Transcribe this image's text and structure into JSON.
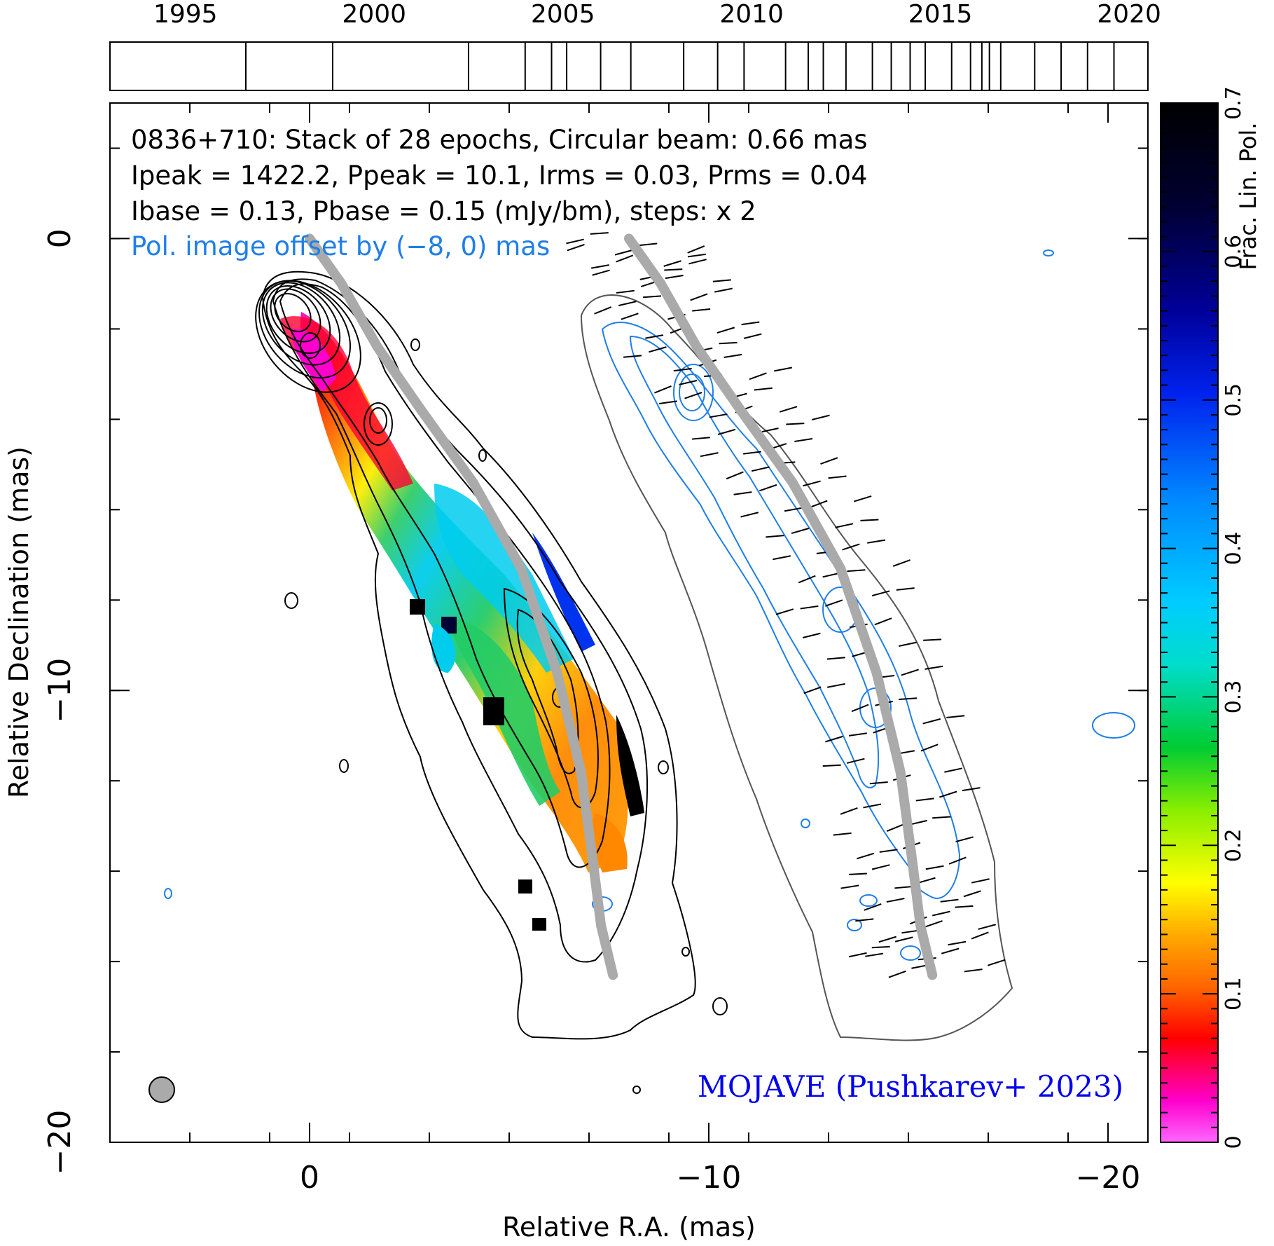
{
  "chart_data": {
    "type": "heatmap",
    "source": "0836+710",
    "header": {
      "line1": "0836+710: Stack of 28 epochs, Circular beam: 0.66 mas",
      "line2": "Ipeak = 1422.2, Ppeak = 10.1, Irms = 0.03, Prms = 0.04",
      "line3": "Ibase = 0.13, Pbase = 0.15 (mJy/bm), steps: x 2",
      "offset_note": "Pol. image offset by (−8, 0) mas"
    },
    "credit": "MOJAVE (Pushkarev+ 2023)",
    "xlabel": "Relative R.A. (mas)",
    "ylabel": "Relative Declination (mas)",
    "colorbar_label": "Frac. Lin. Pol.",
    "xlim": [
      5,
      -21
    ],
    "ylim": [
      -20,
      3
    ],
    "x_ticks": [
      0,
      -10,
      -20
    ],
    "x_tick_labels": [
      "0",
      "−10",
      "−20"
    ],
    "y_ticks": [
      0,
      -10,
      -20
    ],
    "y_tick_labels": [
      "0",
      "−10",
      "−20"
    ],
    "colorbar_range": [
      0,
      0.7
    ],
    "colorbar_ticks": [
      0,
      0.1,
      0.2,
      0.3,
      0.4,
      0.5,
      0.6,
      0.7
    ],
    "colorbar_tick_labels": [
      "0",
      "0.1",
      "0.2",
      "0.3",
      "0.4",
      "0.5",
      "0.6",
      "0.7"
    ],
    "epoch_years": [
      1995,
      2000,
      2005,
      2010,
      2015,
      2020
    ],
    "epoch_year_labels": [
      "1995",
      "2000",
      "2005",
      "2010",
      "2015",
      "2020"
    ],
    "epoch_range": [
      1993,
      2020.5
    ],
    "epochs": [
      1996.6,
      1998.9,
      2002.5,
      2004.0,
      2004.7,
      2005.1,
      2006.0,
      2006.8,
      2008.2,
      2009.1,
      2009.8,
      2010.9,
      2011.5,
      2011.9,
      2012.5,
      2013.2,
      2013.7,
      2014.2,
      2014.6,
      2015.3,
      2015.8,
      2016.1,
      2016.3,
      2016.6,
      2017.5,
      2018.2,
      2018.9,
      2019.6
    ],
    "ridge_line": [
      [
        0,
        0
      ],
      [
        -0.8,
        -1.0
      ],
      [
        -1.7,
        -2.4
      ],
      [
        -2.8,
        -3.8
      ],
      [
        -4.1,
        -5.4
      ],
      [
        -5.3,
        -7.3
      ],
      [
        -6.2,
        -9.6
      ],
      [
        -6.8,
        -11.8
      ],
      [
        -7.1,
        -13.8
      ],
      [
        -7.3,
        -15.2
      ],
      [
        -7.6,
        -16.3
      ]
    ],
    "beam_diameter_mas": 0.66,
    "legend": "none",
    "grid": false
  }
}
